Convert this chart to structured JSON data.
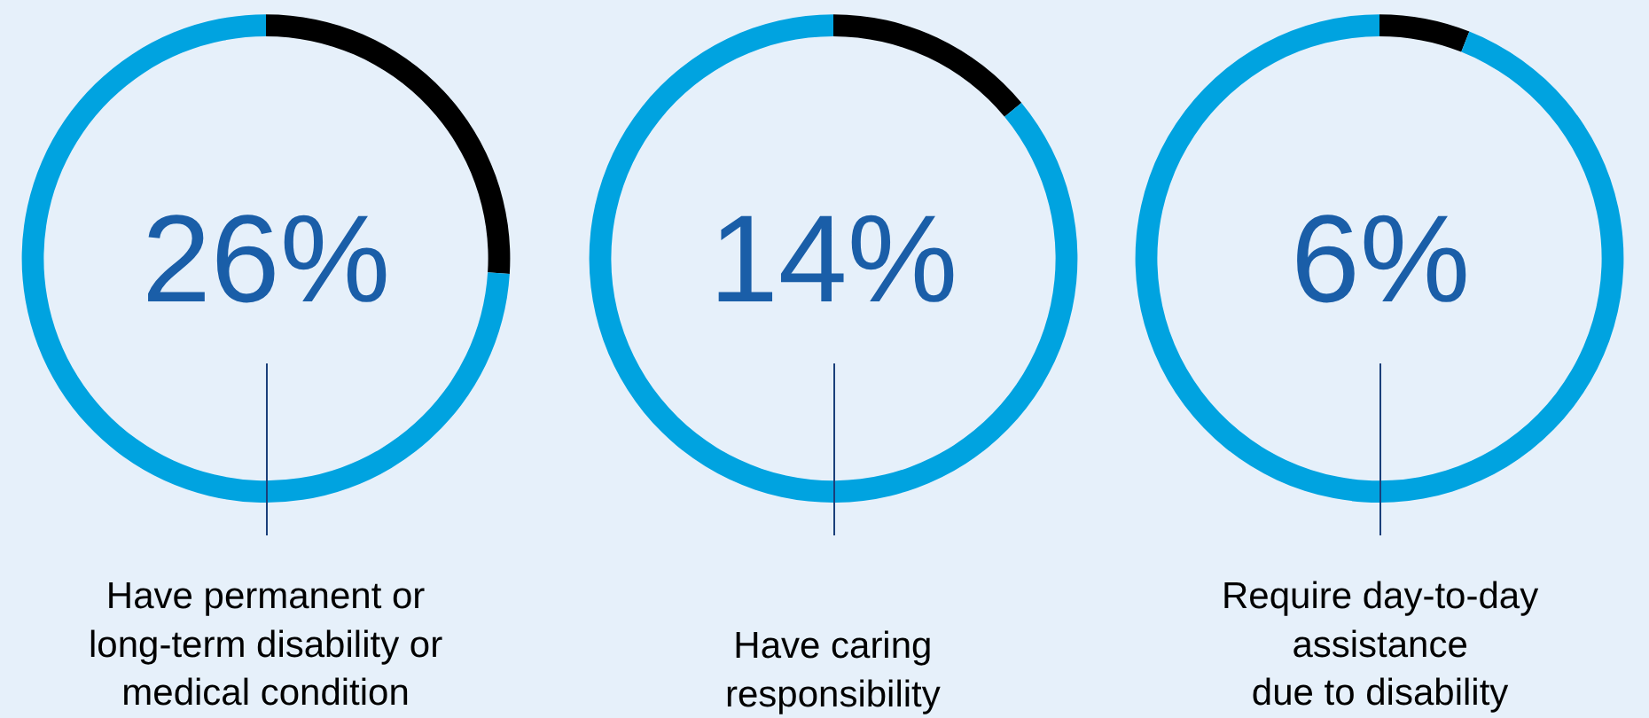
{
  "chart_data": [
    {
      "type": "donut",
      "title": "Have permanent or\nlong-term disability or\nmedical condition",
      "categories": [
        null,
        null
      ],
      "values": [
        26,
        74
      ],
      "colors": [
        "#000000",
        "#00a3e0"
      ],
      "annotations": [
        "26%"
      ]
    },
    {
      "type": "donut",
      "title": "Have caring\nresponsibility",
      "categories": [
        null,
        null
      ],
      "values": [
        14,
        86
      ],
      "colors": [
        "#000000",
        "#00a3e0"
      ],
      "annotations": [
        "14%"
      ]
    },
    {
      "type": "donut",
      "title": "Require day-to-day\nassistance\ndue to disability",
      "categories": [
        null,
        null
      ],
      "values": [
        6,
        94
      ],
      "colors": [
        "#000000",
        "#00a3e0"
      ],
      "annotations": [
        "6%"
      ]
    }
  ]
}
